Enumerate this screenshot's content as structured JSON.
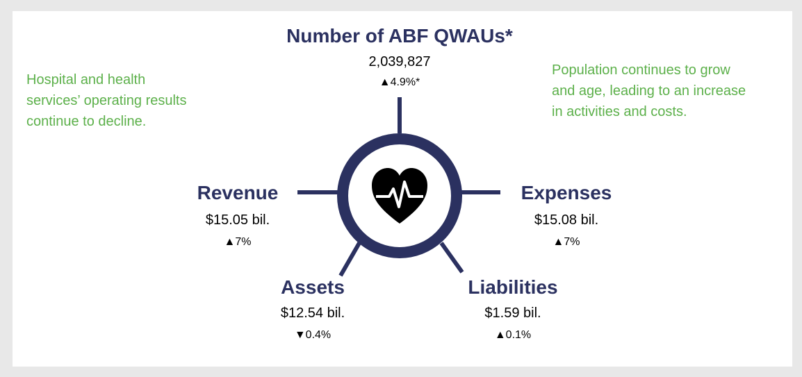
{
  "header": {
    "title": "Number of ABF QWAUs*",
    "value": "2,039,827",
    "change": "▲4.9%*"
  },
  "notes": {
    "left": [
      "Hospital and health",
      "services’ operating results",
      "continue to decline."
    ],
    "right": [
      "Population continues to grow",
      "and age, leading to an increase",
      "in activities and costs."
    ]
  },
  "nodes": [
    {
      "label": "Revenue",
      "value": "$15.05 bil.",
      "change": "▲7%"
    },
    {
      "label": "Expenses",
      "value": "$15.08 bil.",
      "change": "▲7%"
    },
    {
      "label": "Assets",
      "value": "$12.54 bil.",
      "change": "▼0.4%"
    },
    {
      "label": "Liabilities",
      "value": "$1.59 bil.",
      "change": "▲0.1%"
    }
  ]
}
